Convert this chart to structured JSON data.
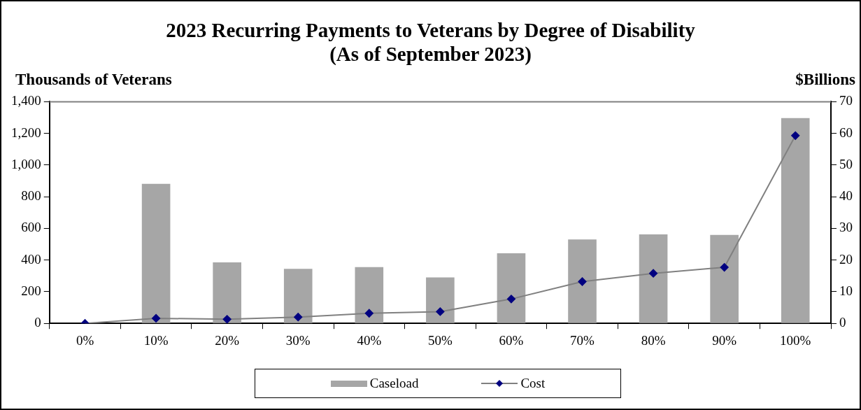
{
  "chart_data": {
    "type": "bar",
    "title": "2023 Recurring Payments to Veterans by Degree of Disability",
    "subtitle": "(As of September 2023)",
    "ylabel": "Thousands of Veterans",
    "y2label": "$Billions",
    "categories": [
      "0%",
      "10%",
      "20%",
      "30%",
      "40%",
      "50%",
      "60%",
      "70%",
      "80%",
      "90%",
      "100%"
    ],
    "series": [
      {
        "name": "Caseload",
        "color": "#a6a6a6",
        "values": [
          0,
          881,
          385,
          344,
          356,
          290,
          443,
          530,
          562,
          559,
          1297
        ]
      },
      {
        "name": "Cost",
        "type": "line",
        "axis": "y2",
        "color": "#000080",
        "marker": "diamond",
        "values": [
          0,
          1.6,
          1.3,
          2.0,
          3.2,
          3.7,
          7.7,
          13.2,
          15.8,
          17.7,
          59.3
        ]
      }
    ],
    "ylim": [
      0,
      1400
    ],
    "yticks": [
      {
        "value": 0,
        "label": "0"
      },
      {
        "value": 200,
        "label": "200"
      },
      {
        "value": 400,
        "label": "400"
      },
      {
        "value": 600,
        "label": "600"
      },
      {
        "value": 800,
        "label": "800"
      },
      {
        "value": 1000,
        "label": "1,000"
      },
      {
        "value": 1200,
        "label": "1,200"
      },
      {
        "value": 1400,
        "label": "1,400"
      }
    ],
    "y2lim": [
      0,
      70
    ],
    "y2ticks": [
      0,
      10,
      20,
      30,
      40,
      50,
      60,
      70
    ],
    "grid": false,
    "legend": "bottom"
  }
}
